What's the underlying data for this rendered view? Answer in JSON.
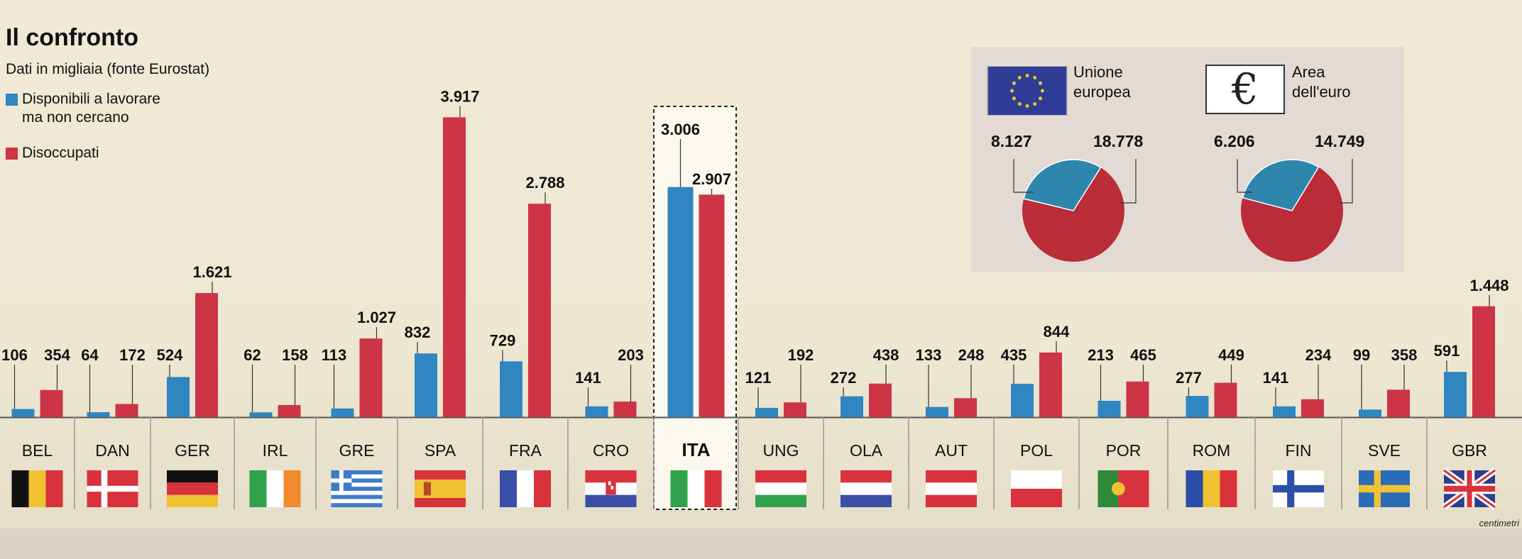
{
  "colors": {
    "blue": "#2f86c0",
    "red": "#cd3446",
    "eu_blue": "#2f3d96",
    "pie_blue": "#2e86ad",
    "pie_red": "#b92c38"
  },
  "header": {
    "title": "Il confronto",
    "subtitle": "Dati in migliaia (fonte Eurostat)"
  },
  "legend": {
    "blue_label": [
      "Disponibili a lavorare",
      "ma non cercano"
    ],
    "red_label": "Disoccupati"
  },
  "chart_data": [
    {
      "type": "bar",
      "title": "Il confronto",
      "categories": [
        "BEL",
        "DAN",
        "GER",
        "IRL",
        "GRE",
        "SPA",
        "FRA",
        "CRO",
        "ITA",
        "UNG",
        "OLA",
        "AUT",
        "POL",
        "POR",
        "ROM",
        "FIN",
        "SVE",
        "GBR"
      ],
      "series": [
        {
          "name": "Disponibili a lavorare ma non cercano",
          "values": [
            106,
            64,
            524,
            62,
            113,
            832,
            729,
            141,
            3006,
            121,
            272,
            133,
            435,
            213,
            277,
            141,
            99,
            591
          ],
          "labels": [
            "106",
            "64",
            "524",
            "62",
            "113",
            "832",
            "729",
            "141",
            "3.006",
            "121",
            "272",
            "133",
            "435",
            "213",
            "277",
            "141",
            "99",
            "591"
          ]
        },
        {
          "name": "Disoccupati",
          "values": [
            354,
            172,
            1621,
            158,
            1027,
            3917,
            2788,
            203,
            2907,
            192,
            438,
            248,
            844,
            465,
            449,
            234,
            358,
            1448
          ],
          "labels": [
            "354",
            "172",
            "1.621",
            "158",
            "1.027",
            "3.917",
            "2.788",
            "203",
            "2.907",
            "192",
            "438",
            "248",
            "844",
            "465",
            "449",
            "234",
            "358",
            "1.448"
          ]
        }
      ],
      "highlight": "ITA",
      "flags": [
        "BEL",
        "DAN",
        "GER",
        "IRL",
        "GRE",
        "SPA",
        "FRA",
        "CRO",
        "ITA",
        "UNG",
        "OLA",
        "AUT",
        "POL",
        "POR",
        "ROM",
        "FIN",
        "SVE",
        "GBR"
      ]
    },
    {
      "type": "pie",
      "title": "Unione europea",
      "labels": [
        "Disponibili a lavorare ma non cercano",
        "Disoccupati"
      ],
      "values": [
        8127,
        18778
      ],
      "value_labels": [
        "8.127",
        "18.778"
      ]
    },
    {
      "type": "pie",
      "title": "Area dell'euro",
      "labels": [
        "Disponibili a lavorare ma non cercano",
        "Disoccupati"
      ],
      "values": [
        6206,
        14749
      ],
      "value_labels": [
        "6.206",
        "14.749"
      ]
    }
  ],
  "pies": {
    "eu": {
      "label": [
        "Unione",
        "europea"
      ],
      "icon": "eu-flag-icon",
      "left_value": "8.127",
      "right_value": "18.778"
    },
    "euro": {
      "label": [
        "Area",
        "dell'euro"
      ],
      "icon": "euro-icon",
      "symbol": "€",
      "left_value": "6.206",
      "right_value": "14.749"
    }
  },
  "credit": "centimetri"
}
